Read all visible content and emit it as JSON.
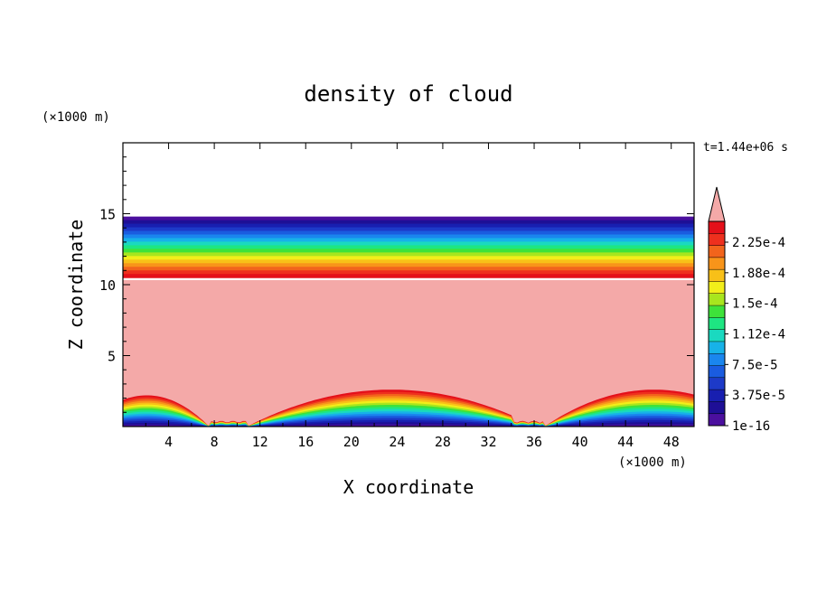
{
  "chart_data": {
    "type": "heatmap",
    "title": "density of cloud",
    "xlabel": "X coordinate",
    "ylabel": "Z coordinate",
    "x_unit": "(×1000 m)",
    "y_unit": "(×1000 m)",
    "time_label": "t=1.44e+06 s",
    "xlim": [
      0,
      50
    ],
    "ylim": [
      0,
      20
    ],
    "x_ticks": [
      "4",
      "8",
      "12",
      "16",
      "20",
      "24",
      "28",
      "32",
      "36",
      "40",
      "44",
      "48"
    ],
    "y_ticks": [
      "5",
      "10",
      "15"
    ],
    "colorbar": {
      "labels": [
        "2.25e-4",
        "1.88e-4",
        "1.5e-4",
        "1.12e-4",
        "7.5e-5",
        "3.75e-5",
        "1e-16"
      ],
      "extend": "max",
      "over_color": "#f4a9a8",
      "colors": [
        "#4b0f9e",
        "#1e0f96",
        "#181fb0",
        "#1d3ac8",
        "#1a5ce0",
        "#1a86ee",
        "#17b2e8",
        "#1ad9c0",
        "#1ee682",
        "#3ee23a",
        "#a8e61e",
        "#f2ee1a",
        "#f8c018",
        "#f8941a",
        "#f2641c",
        "#ee301e",
        "#e4101a"
      ]
    },
    "layers": {
      "cloud_top_km": 14.8,
      "cloud_base_km": 10.5,
      "lower_layer_peaks_km": [
        2.2,
        2.6,
        2.6
      ],
      "lower_layer_minima_x_km": [
        8,
        35
      ]
    }
  }
}
